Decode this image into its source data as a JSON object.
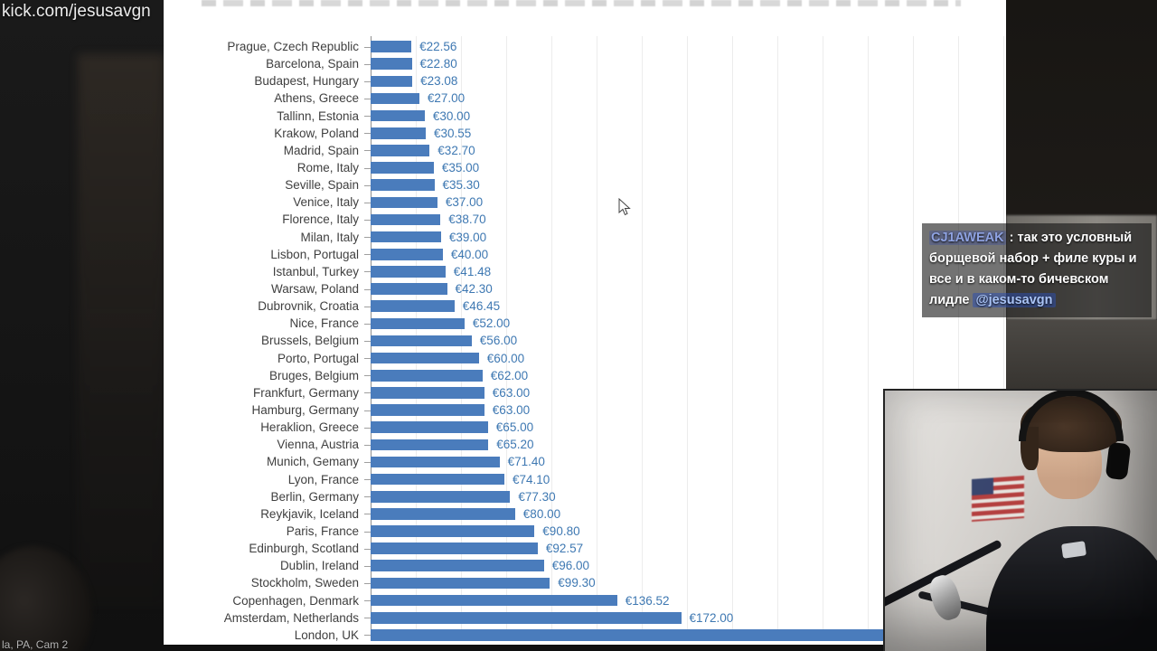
{
  "stream": {
    "watermark": "kick.com/jesusavgn",
    "bottom_left_label": "la, PA, Cam 2",
    "chat_message": {
      "username": "CJ1AWEAK",
      "separator": " : ",
      "text": "так это условный борщевой набор + филе куры и все и в каком-то бичевском лидле ",
      "mention": "@jesusavgn"
    },
    "colors": {
      "chat_username": "#8fa3e3",
      "chat_mention": "#aac4f7",
      "chat_mention_bg": "#2d4fae"
    }
  },
  "chart_data": {
    "type": "bar",
    "orientation": "horizontal",
    "currency": "EUR",
    "xlim": [
      0,
      352
    ],
    "grid": true,
    "bar_color": "#4a7cbc",
    "value_label_color": "#3e78b2",
    "category_label_color": "#3f3f3f",
    "rows": [
      {
        "city": "Prague, Czech Republic",
        "value": 22.56,
        "label": "€22.56"
      },
      {
        "city": "Barcelona, Spain",
        "value": 22.8,
        "label": "€22.80"
      },
      {
        "city": "Budapest, Hungary",
        "value": 23.08,
        "label": "€23.08"
      },
      {
        "city": "Athens, Greece",
        "value": 27.0,
        "label": "€27.00"
      },
      {
        "city": "Tallinn, Estonia",
        "value": 30.0,
        "label": "€30.00"
      },
      {
        "city": "Krakow, Poland",
        "value": 30.55,
        "label": "€30.55"
      },
      {
        "city": "Madrid, Spain",
        "value": 32.7,
        "label": "€32.70"
      },
      {
        "city": "Rome, Italy",
        "value": 35.0,
        "label": "€35.00"
      },
      {
        "city": "Seville, Spain",
        "value": 35.3,
        "label": "€35.30"
      },
      {
        "city": "Venice, Italy",
        "value": 37.0,
        "label": "€37.00"
      },
      {
        "city": "Florence, Italy",
        "value": 38.7,
        "label": "€38.70"
      },
      {
        "city": "Milan, Italy",
        "value": 39.0,
        "label": "€39.00"
      },
      {
        "city": "Lisbon, Portugal",
        "value": 40.0,
        "label": "€40.00"
      },
      {
        "city": "Istanbul, Turkey",
        "value": 41.48,
        "label": "€41.48"
      },
      {
        "city": "Warsaw, Poland",
        "value": 42.3,
        "label": "€42.30"
      },
      {
        "city": "Dubrovnik, Croatia",
        "value": 46.45,
        "label": "€46.45"
      },
      {
        "city": "Nice, France",
        "value": 52.0,
        "label": "€52.00"
      },
      {
        "city": "Brussels, Belgium",
        "value": 56.0,
        "label": "€56.00"
      },
      {
        "city": "Porto, Portugal",
        "value": 60.0,
        "label": "€60.00"
      },
      {
        "city": "Bruges, Belgium",
        "value": 62.0,
        "label": "€62.00"
      },
      {
        "city": "Frankfurt, Germany",
        "value": 63.0,
        "label": "€63.00"
      },
      {
        "city": "Hamburg, Germany",
        "value": 63.0,
        "label": "€63.00"
      },
      {
        "city": "Heraklion, Greece",
        "value": 65.0,
        "label": "€65.00"
      },
      {
        "city": "Vienna, Austria",
        "value": 65.2,
        "label": "€65.20"
      },
      {
        "city": "Munich, Gemany",
        "value": 71.4,
        "label": "€71.40"
      },
      {
        "city": "Lyon, France",
        "value": 74.1,
        "label": "€74.10"
      },
      {
        "city": "Berlin, Germany",
        "value": 77.3,
        "label": "€77.30"
      },
      {
        "city": "Reykjavik, Iceland",
        "value": 80.0,
        "label": "€80.00"
      },
      {
        "city": "Paris, France",
        "value": 90.8,
        "label": "€90.80"
      },
      {
        "city": "Edinburgh, Scotland",
        "value": 92.57,
        "label": "€92.57"
      },
      {
        "city": "Dublin, Ireland",
        "value": 96.0,
        "label": "€96.00"
      },
      {
        "city": "Stockholm, Sweden",
        "value": 99.3,
        "label": "€99.30"
      },
      {
        "city": "Copenhagen, Denmark",
        "value": 136.52,
        "label": "€136.52"
      },
      {
        "city": "Amsterdam, Netherlands",
        "value": 172.0,
        "label": "€172.00"
      },
      {
        "city": "London, UK",
        "value": null,
        "label": ""
      }
    ]
  }
}
